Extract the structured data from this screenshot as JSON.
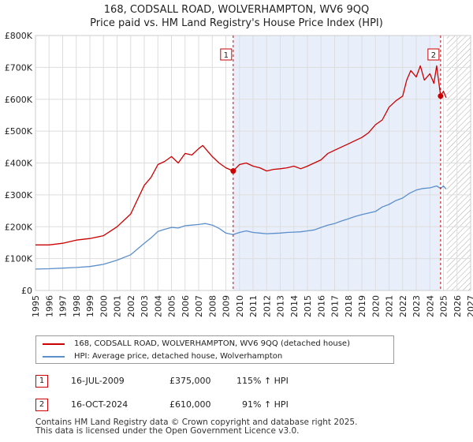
{
  "title_line1": "168, CODSALL ROAD, WOLVERHAMPTON, WV6 9QQ",
  "title_line2": "Price paid vs. HM Land Registry's House Price Index (HPI)",
  "colors": {
    "red": "#cc0000",
    "blue": "#5b8fcc",
    "shade": "#e8eefa",
    "grid": "#dddddd",
    "hatch": "#aaaaaa"
  },
  "chart_data": {
    "type": "line",
    "title": "168, CODSALL ROAD, WOLVERHAMPTON, WV6 9QQ — Price paid vs. HM Land Registry's House Price Index (HPI)",
    "xlabel": "",
    "ylabel": "",
    "xlim": [
      1995,
      2027
    ],
    "ylim": [
      0,
      800000
    ],
    "grid": true,
    "x_ticks": [
      1995,
      1996,
      1997,
      1998,
      1999,
      2000,
      2001,
      2002,
      2003,
      2004,
      2005,
      2006,
      2007,
      2008,
      2009,
      2010,
      2011,
      2012,
      2013,
      2014,
      2015,
      2016,
      2017,
      2018,
      2019,
      2020,
      2021,
      2022,
      2023,
      2024,
      2025,
      2026,
      2027
    ],
    "y_ticks": [
      0,
      100000,
      200000,
      300000,
      400000,
      500000,
      600000,
      700000,
      800000
    ],
    "y_tick_labels": [
      "£0",
      "£100K",
      "£200K",
      "£300K",
      "£400K",
      "£500K",
      "£600K",
      "£700K",
      "£800K"
    ],
    "shaded_region": [
      2009.54,
      2024.79
    ],
    "hatched_region": [
      2025.25,
      2027
    ],
    "series": [
      {
        "name": "168, CODSALL ROAD, WOLVERHAMPTON, WV6 9QQ (detached house)",
        "color": "#cc0000",
        "x": [
          1995,
          1996,
          1997,
          1998,
          1999,
          2000,
          2001,
          2002,
          2002.5,
          2003,
          2003.5,
          2004,
          2004.5,
          2005,
          2005.5,
          2006,
          2006.5,
          2007,
          2007.3,
          2007.6,
          2008,
          2008.5,
          2009,
          2009.54,
          2010,
          2010.5,
          2011,
          2011.5,
          2012,
          2012.5,
          2013,
          2013.5,
          2014,
          2014.5,
          2015,
          2015.5,
          2016,
          2016.5,
          2017,
          2017.5,
          2018,
          2018.5,
          2019,
          2019.5,
          2020,
          2020.5,
          2021,
          2021.5,
          2022,
          2022.3,
          2022.6,
          2023,
          2023.3,
          2023.6,
          2024,
          2024.3,
          2024.5,
          2024.79,
          2025,
          2025.2
        ],
        "y": [
          143000,
          143000,
          148000,
          158000,
          163000,
          172000,
          200000,
          240000,
          285000,
          330000,
          355000,
          395000,
          405000,
          420000,
          400000,
          430000,
          425000,
          445000,
          455000,
          440000,
          420000,
          400000,
          385000,
          375000,
          395000,
          400000,
          390000,
          385000,
          375000,
          380000,
          382000,
          385000,
          390000,
          382000,
          390000,
          400000,
          410000,
          430000,
          440000,
          450000,
          460000,
          470000,
          480000,
          495000,
          520000,
          535000,
          575000,
          595000,
          610000,
          660000,
          690000,
          670000,
          705000,
          660000,
          680000,
          650000,
          705000,
          610000,
          625000,
          605000
        ]
      },
      {
        "name": "HPI: Average price, detached house, Wolverhampton",
        "color": "#5b8fcc",
        "x": [
          1995,
          1996,
          1997,
          1998,
          1999,
          2000,
          2001,
          2002,
          2002.5,
          2003,
          2003.5,
          2004,
          2004.5,
          2005,
          2005.5,
          2006,
          2006.5,
          2007,
          2007.5,
          2008,
          2008.5,
          2009,
          2009.54,
          2010,
          2010.5,
          2011,
          2011.5,
          2012,
          2012.5,
          2013,
          2013.5,
          2014,
          2014.5,
          2015,
          2015.5,
          2016,
          2016.5,
          2017,
          2017.5,
          2018,
          2018.5,
          2019,
          2019.5,
          2020,
          2020.5,
          2021,
          2021.5,
          2022,
          2022.5,
          2023,
          2023.5,
          2024,
          2024.5,
          2024.79,
          2025,
          2025.2
        ],
        "y": [
          67000,
          68000,
          70000,
          72000,
          75000,
          82000,
          95000,
          112000,
          130000,
          148000,
          165000,
          185000,
          192000,
          198000,
          196000,
          203000,
          205000,
          207000,
          210000,
          205000,
          195000,
          180000,
          175000,
          182000,
          187000,
          182000,
          180000,
          178000,
          179000,
          180000,
          182000,
          183000,
          184000,
          187000,
          190000,
          198000,
          205000,
          210000,
          218000,
          225000,
          232000,
          238000,
          243000,
          248000,
          262000,
          270000,
          282000,
          290000,
          305000,
          315000,
          320000,
          322000,
          328000,
          320000,
          328000,
          318000
        ]
      }
    ],
    "annotations": [
      {
        "label": "1",
        "x": 2009.54,
        "y": 375000
      },
      {
        "label": "2",
        "x": 2024.79,
        "y": 610000
      }
    ]
  },
  "legend": {
    "property_label": "168, CODSALL ROAD, WOLVERHAMPTON, WV6 9QQ (detached house)",
    "hpi_label": "HPI: Average price, detached house, Wolverhampton"
  },
  "transactions": [
    {
      "marker": "1",
      "date": "16-JUL-2009",
      "price": "£375,000",
      "hpi_change": "115% ↑ HPI"
    },
    {
      "marker": "2",
      "date": "16-OCT-2024",
      "price": "£610,000",
      "hpi_change": "91% ↑ HPI"
    }
  ],
  "footer": {
    "line1": "Contains HM Land Registry data © Crown copyright and database right 2025.",
    "line2": "This data is licensed under the Open Government Licence v3.0."
  }
}
